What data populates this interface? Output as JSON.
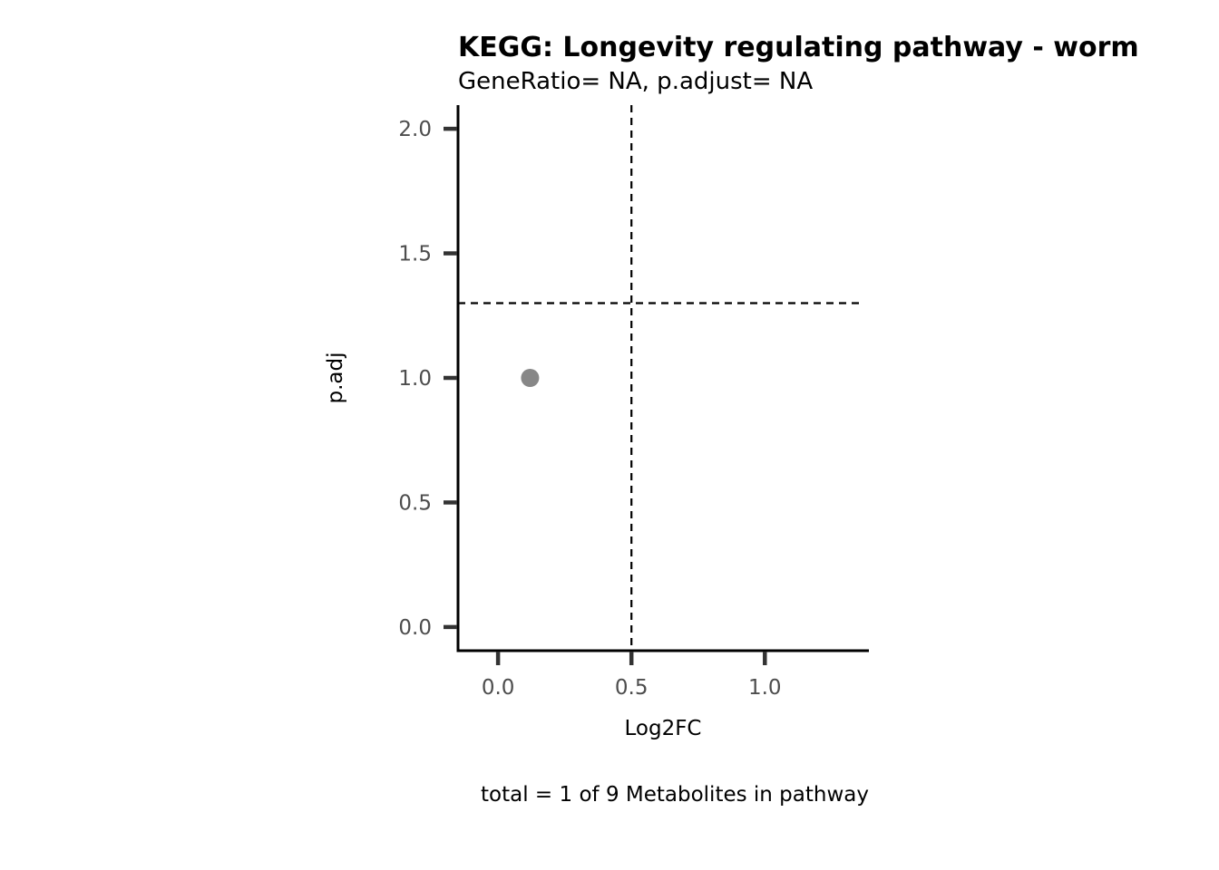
{
  "chart_data": {
    "type": "scatter",
    "title": "KEGG: Longevity regulating pathway - worm",
    "subtitle": "GeneRatio= NA, p.adjust= NA",
    "xlabel": "Log2FC",
    "ylabel": "p.adj",
    "caption": "total = 1 of 9 Metabolites in pathway",
    "xlim": [
      -0.15,
      1.39
    ],
    "ylim": [
      -0.095,
      2.095
    ],
    "x_ticks": [
      0.0,
      0.5,
      1.0
    ],
    "x_tick_labels": [
      "0.0",
      "0.5",
      "1.0"
    ],
    "y_ticks": [
      0.0,
      0.5,
      1.0,
      1.5,
      2.0
    ],
    "y_tick_labels": [
      "0.0",
      "0.5",
      "1.0",
      "1.5",
      "2.0"
    ],
    "points": [
      {
        "x": 0.12,
        "y": 1.0
      }
    ],
    "point_color": "#878787",
    "reference_lines": {
      "vertical_x": 0.5,
      "horizontal_y": 1.3
    },
    "grid": false,
    "legend": "none"
  }
}
